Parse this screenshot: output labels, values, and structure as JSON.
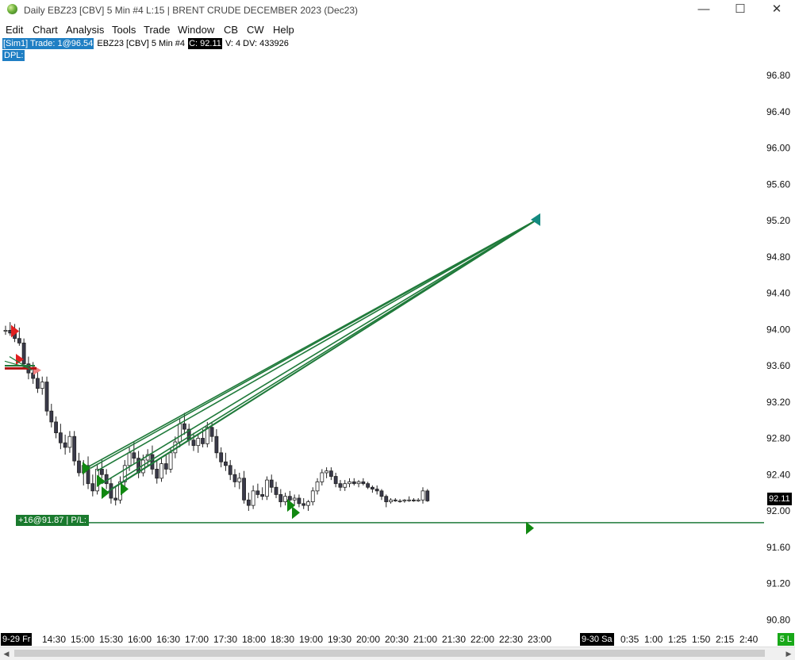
{
  "window": {
    "title": "Daily EBZ23 [CBV]  5 Min   #4 L:15 | BRENT CRUDE DECEMBER 2023 (Dec23)",
    "minimize": "—",
    "maximize": "☐",
    "close": "✕"
  },
  "menu": [
    "Edit",
    "Chart",
    "Analysis",
    "Tools",
    "Trade",
    "Window",
    "CB",
    "CW",
    "Help"
  ],
  "info": {
    "sim_trade": "[Sim1]  Trade: 1@96.54",
    "symbol": "EBZ23 [CBV]  5 Min   #4",
    "close": "C: 92.11",
    "volume": "V: 4 DV: 433926",
    "dpl": "DPL:"
  },
  "price_axis": [
    "96.80",
    "96.40",
    "96.00",
    "95.60",
    "95.20",
    "94.80",
    "94.40",
    "94.00",
    "93.60",
    "93.20",
    "92.80",
    "92.40",
    "92.00",
    "91.60",
    "91.20",
    "90.80"
  ],
  "last_price": "92.11",
  "position_label": "+16@91.87 | P/L:",
  "time_axis": {
    "date_left": "9-29 Fr",
    "ticks_left": [
      "14:30",
      "15:00",
      "15:30",
      "16:00",
      "16:30",
      "17:00",
      "17:30",
      "18:00",
      "18:30",
      "19:00",
      "19:30",
      "20:00",
      "20:30",
      "21:00",
      "21:30",
      "22:00",
      "22:30",
      "23:00"
    ],
    "date_right": "9-30 Sa",
    "ticks_right": [
      "0:35",
      "1:00",
      "1:25",
      "1:50",
      "2:15",
      "2:40"
    ],
    "period": "5 L"
  },
  "colors": {
    "up_candle": "#ffffff",
    "down_candle": "#3a3a4a",
    "trade_line": "#1f7a3a",
    "entry_marker": "#118811",
    "target_marker": "#138a80",
    "sell_marker": "#e02020",
    "accent_blue": "#1f7fc4"
  },
  "chart_data": {
    "type": "candlestick",
    "symbol": "EBZ23",
    "interval": "5 Min",
    "ylim": [
      90.62,
      96.96
    ],
    "position_price": 91.87,
    "target_price": 95.21,
    "candles": [
      [
        93.98,
        94.04,
        93.94,
        93.99
      ],
      [
        93.99,
        94.08,
        93.93,
        93.96
      ],
      [
        93.96,
        94.06,
        93.86,
        93.9
      ],
      [
        93.9,
        94.02,
        93.82,
        93.85
      ],
      [
        93.85,
        93.9,
        93.58,
        93.62
      ],
      [
        93.62,
        93.7,
        93.45,
        93.52
      ],
      [
        93.52,
        93.64,
        93.4,
        93.46
      ],
      [
        93.46,
        93.55,
        93.3,
        93.35
      ],
      [
        93.35,
        93.48,
        93.28,
        93.42
      ],
      [
        93.42,
        93.48,
        93.05,
        93.1
      ],
      [
        93.1,
        93.18,
        92.92,
        92.98
      ],
      [
        92.98,
        93.04,
        92.8,
        92.86
      ],
      [
        92.86,
        92.96,
        92.68,
        92.75
      ],
      [
        92.75,
        92.84,
        92.62,
        92.7
      ],
      [
        92.7,
        92.88,
        92.64,
        92.82
      ],
      [
        92.82,
        92.88,
        92.5,
        92.55
      ],
      [
        92.55,
        92.64,
        92.38,
        92.42
      ],
      [
        92.42,
        92.56,
        92.28,
        92.5
      ],
      [
        92.5,
        92.6,
        92.24,
        92.3
      ],
      [
        92.3,
        92.4,
        92.16,
        92.22
      ],
      [
        92.22,
        92.52,
        92.18,
        92.46
      ],
      [
        92.46,
        92.56,
        92.36,
        92.4
      ],
      [
        92.4,
        92.46,
        92.24,
        92.3
      ],
      [
        92.3,
        92.36,
        92.08,
        92.14
      ],
      [
        92.14,
        92.26,
        92.06,
        92.12
      ],
      [
        92.12,
        92.38,
        92.08,
        92.32
      ],
      [
        92.32,
        92.56,
        92.26,
        92.5
      ],
      [
        92.5,
        92.7,
        92.44,
        92.64
      ],
      [
        92.64,
        92.76,
        92.52,
        92.58
      ],
      [
        92.58,
        92.66,
        92.36,
        92.42
      ],
      [
        92.42,
        92.62,
        92.38,
        92.56
      ],
      [
        92.56,
        92.68,
        92.5,
        92.62
      ],
      [
        92.62,
        92.72,
        92.4,
        92.46
      ],
      [
        92.46,
        92.56,
        92.3,
        92.36
      ],
      [
        92.36,
        92.58,
        92.32,
        92.52
      ],
      [
        92.52,
        92.62,
        92.4,
        92.46
      ],
      [
        92.46,
        92.7,
        92.42,
        92.64
      ],
      [
        92.64,
        92.82,
        92.58,
        92.76
      ],
      [
        92.76,
        93.02,
        92.7,
        92.96
      ],
      [
        92.96,
        93.08,
        92.84,
        92.9
      ],
      [
        92.9,
        92.96,
        92.72,
        92.78
      ],
      [
        92.78,
        92.86,
        92.66,
        92.72
      ],
      [
        92.72,
        92.84,
        92.64,
        92.8
      ],
      [
        92.8,
        92.9,
        92.7,
        92.74
      ],
      [
        92.74,
        92.98,
        92.7,
        92.92
      ],
      [
        92.92,
        92.98,
        92.76,
        92.82
      ],
      [
        92.82,
        92.9,
        92.58,
        92.64
      ],
      [
        92.64,
        92.7,
        92.48,
        92.54
      ],
      [
        92.54,
        92.64,
        92.44,
        92.5
      ],
      [
        92.5,
        92.56,
        92.34,
        92.4
      ],
      [
        92.4,
        92.46,
        92.26,
        92.32
      ],
      [
        92.32,
        92.42,
        92.24,
        92.36
      ],
      [
        92.36,
        92.44,
        92.08,
        92.12
      ],
      [
        92.12,
        92.2,
        92.0,
        92.06
      ],
      [
        92.06,
        92.28,
        92.02,
        92.22
      ],
      [
        92.22,
        92.3,
        92.14,
        92.18
      ],
      [
        92.18,
        92.26,
        92.12,
        92.16
      ],
      [
        92.16,
        92.38,
        92.12,
        92.34
      ],
      [
        92.34,
        92.4,
        92.2,
        92.26
      ],
      [
        92.26,
        92.32,
        92.14,
        92.18
      ],
      [
        92.18,
        92.24,
        92.04,
        92.1
      ],
      [
        92.1,
        92.2,
        92.06,
        92.16
      ],
      [
        92.16,
        92.22,
        92.08,
        92.12
      ],
      [
        92.12,
        92.18,
        92.06,
        92.14
      ],
      [
        92.14,
        92.18,
        92.04,
        92.08
      ],
      [
        92.08,
        92.14,
        92.02,
        92.06
      ],
      [
        92.06,
        92.12,
        92.0,
        92.1
      ],
      [
        92.1,
        92.26,
        92.06,
        92.22
      ],
      [
        92.22,
        92.36,
        92.18,
        92.32
      ],
      [
        92.32,
        92.46,
        92.28,
        92.42
      ],
      [
        92.42,
        92.48,
        92.36,
        92.44
      ],
      [
        92.44,
        92.48,
        92.34,
        92.38
      ],
      [
        92.38,
        92.42,
        92.26,
        92.3
      ],
      [
        92.3,
        92.34,
        92.22,
        92.26
      ],
      [
        92.26,
        92.34,
        92.22,
        92.3
      ],
      [
        92.3,
        92.36,
        92.26,
        92.32
      ],
      [
        92.32,
        92.36,
        92.28,
        92.3
      ],
      [
        92.3,
        92.34,
        92.26,
        92.32
      ],
      [
        92.32,
        92.36,
        92.28,
        92.3
      ],
      [
        92.3,
        92.32,
        92.24,
        92.26
      ],
      [
        92.26,
        92.28,
        92.2,
        92.24
      ],
      [
        92.24,
        92.28,
        92.18,
        92.22
      ],
      [
        92.22,
        92.24,
        92.12,
        92.16
      ],
      [
        92.16,
        92.18,
        92.04,
        92.1
      ],
      [
        92.1,
        92.14,
        92.08,
        92.12
      ],
      [
        92.12,
        92.14,
        92.1,
        92.11
      ],
      [
        92.11,
        92.13,
        92.09,
        92.11
      ],
      [
        92.11,
        92.13,
        92.09,
        92.12
      ],
      [
        92.12,
        92.16,
        92.1,
        92.12
      ],
      [
        92.12,
        92.14,
        92.1,
        92.11
      ],
      [
        92.11,
        92.14,
        92.1,
        92.12
      ],
      [
        92.12,
        92.26,
        92.08,
        92.22
      ],
      [
        92.22,
        92.24,
        92.1,
        92.11
      ]
    ],
    "trade_lines_from": [
      92.47,
      92.47,
      92.44,
      92.3,
      92.2,
      92.24,
      92.37
    ],
    "target_marker": 95.21,
    "entry_markers": [
      92.47,
      92.33,
      92.2,
      92.24,
      92.06,
      91.81
    ]
  }
}
